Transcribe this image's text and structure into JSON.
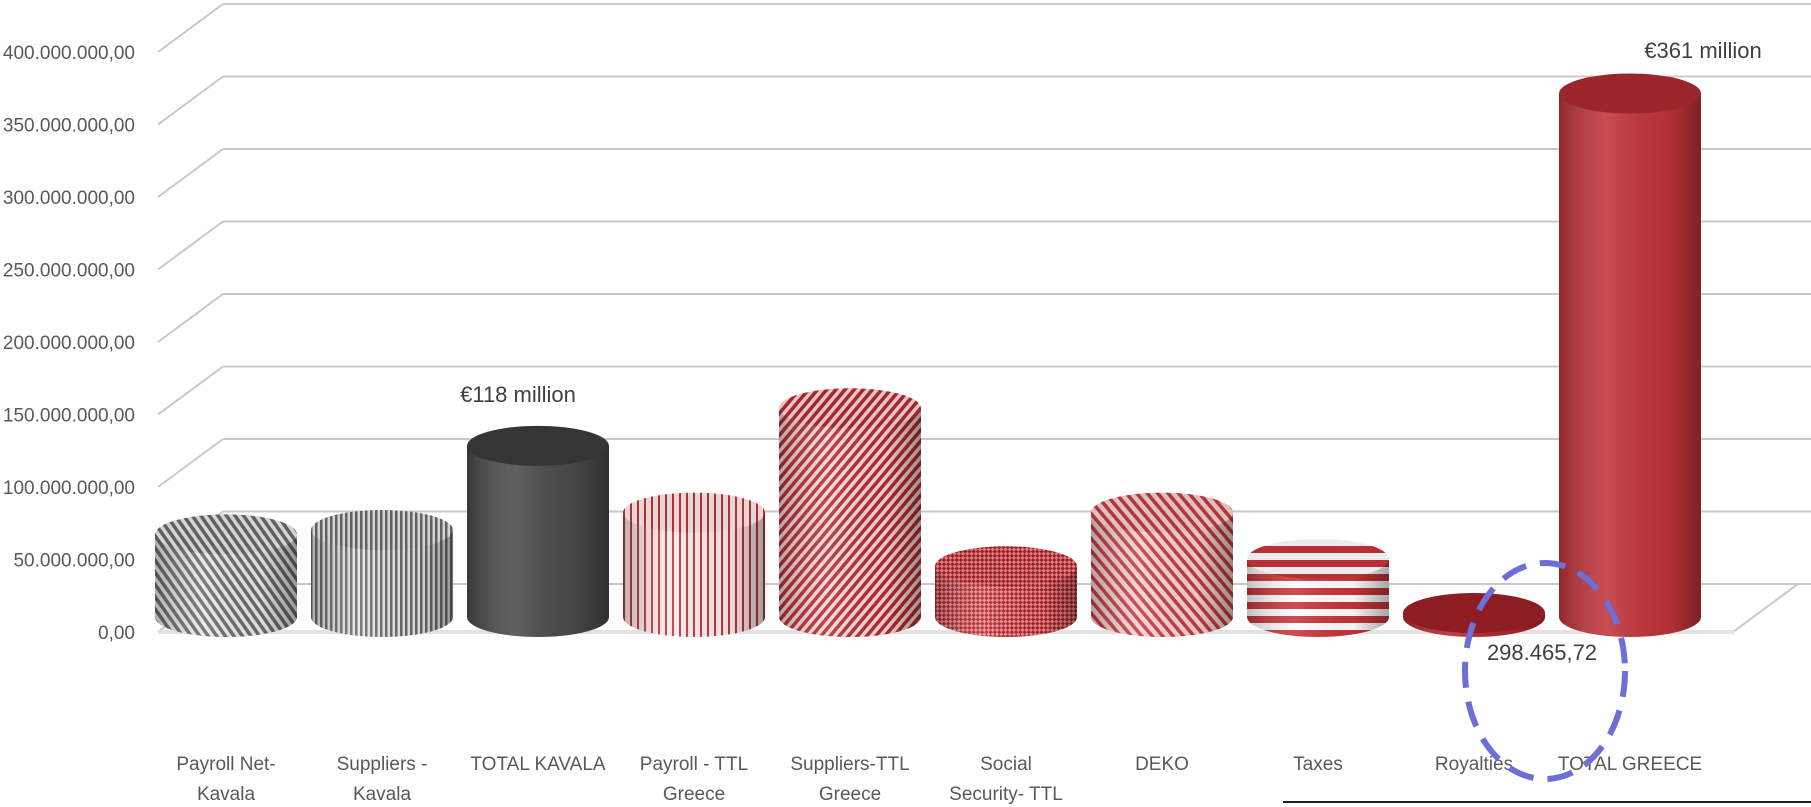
{
  "chart_data": {
    "type": "bar",
    "style": "3d-cylinder",
    "categories": [
      [
        "Payroll Net-",
        "Kavala"
      ],
      [
        "Suppliers -",
        "Kavala"
      ],
      [
        "TOTAL KAVALA"
      ],
      [
        "Payroll - TTL",
        "Greece"
      ],
      [
        "Suppliers-TTL",
        "Greece"
      ],
      [
        "Social",
        "Security- TTL"
      ],
      [
        "DEKO"
      ],
      [
        "Taxes"
      ],
      [
        "Royalties"
      ],
      [
        "TOTAL GREECE"
      ]
    ],
    "values": [
      57000000,
      60000000,
      118000000,
      72000000,
      144000000,
      35000000,
      72000000,
      40000000,
      298465.72,
      361000000
    ],
    "data_labels": [
      "",
      "",
      "€118 million",
      "",
      "",
      "",
      "",
      "",
      "298.465,72",
      "€361 million"
    ],
    "ylim": [
      0,
      400000000
    ],
    "yticks": [
      "0,00",
      "50.000.000,00",
      "100.000.000,00",
      "150.000.000,00",
      "200.000.000,00",
      "250.000.000,00",
      "300.000.000,00",
      "350.000.000,00",
      "400.000.000,00"
    ],
    "grid": true,
    "colors": {
      "gray_dark": "#4a4a4a",
      "gray_stripe": "#7a7a7a",
      "red": "#c0343a",
      "red_dark": "#8e1c22",
      "highlight_circle": "#6b6fd6",
      "gridline": "#c8c8c8"
    },
    "bar_styles": [
      "gray-diag",
      "gray-vert",
      "gray-solid",
      "red-vert-light",
      "red-diag",
      "red-check",
      "red-diag2",
      "red-horiz",
      "red-solid-dark",
      "red-solid"
    ]
  }
}
